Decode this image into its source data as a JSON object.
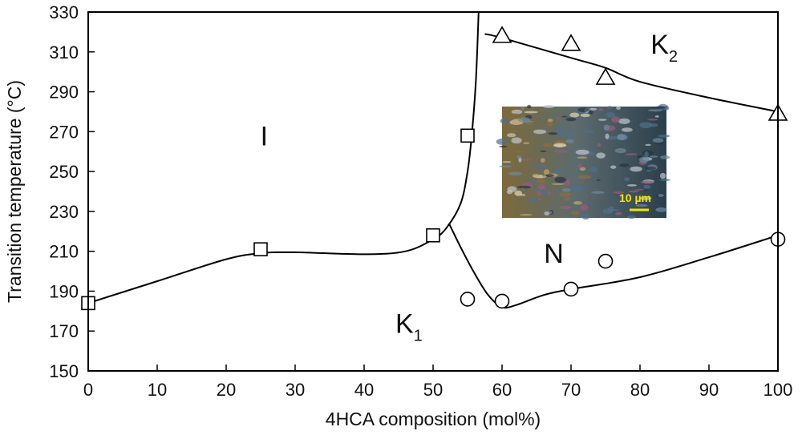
{
  "chart_data": {
    "type": "scatter",
    "title": "",
    "xlabel": "4HCA composition (mol%)",
    "ylabel": "Transition temperature (°C)",
    "xlim": [
      0,
      100
    ],
    "ylim": [
      150,
      330
    ],
    "x_ticks": [
      0,
      10,
      20,
      30,
      40,
      50,
      60,
      70,
      80,
      90,
      100
    ],
    "y_ticks": [
      150,
      170,
      190,
      210,
      230,
      250,
      270,
      290,
      310,
      330
    ],
    "grid": false,
    "legend": "none",
    "series": [
      {
        "marker": "square",
        "points": [
          [
            0,
            184
          ],
          [
            25,
            211
          ],
          [
            50,
            218
          ],
          [
            55,
            268
          ]
        ]
      },
      {
        "marker": "circle",
        "points": [
          [
            55,
            186
          ],
          [
            60,
            185
          ],
          [
            70,
            191
          ],
          [
            75,
            205
          ],
          [
            100,
            216
          ]
        ]
      },
      {
        "marker": "triangle",
        "points": [
          [
            60,
            318
          ],
          [
            70,
            314
          ],
          [
            75,
            297
          ],
          [
            100,
            279
          ]
        ]
      }
    ],
    "curves": [
      {
        "points": [
          [
            0,
            184
          ],
          [
            10,
            195
          ],
          [
            20,
            206
          ],
          [
            25,
            209
          ],
          [
            30,
            209.5
          ],
          [
            40,
            208.5
          ],
          [
            46,
            210
          ],
          [
            50,
            216
          ],
          [
            52,
            222
          ],
          [
            54,
            234
          ],
          [
            55,
            250
          ],
          [
            55.6,
            268
          ],
          [
            56.2,
            295
          ],
          [
            56.6,
            330
          ]
        ]
      },
      {
        "points": [
          [
            52.3,
            224
          ],
          [
            54,
            212
          ],
          [
            56,
            199
          ],
          [
            58,
            188
          ],
          [
            60,
            182
          ],
          [
            62,
            183
          ],
          [
            66,
            188
          ],
          [
            70,
            191
          ],
          [
            80,
            197
          ],
          [
            90,
            207
          ],
          [
            100,
            218
          ]
        ]
      },
      {
        "points": [
          [
            57.5,
            319
          ],
          [
            60,
            317
          ],
          [
            70,
            307
          ],
          [
            75,
            302
          ],
          [
            80,
            295
          ],
          [
            90,
            287
          ],
          [
            100,
            280
          ]
        ]
      }
    ],
    "region_labels": [
      {
        "text": "I",
        "sub": "",
        "x": 25.5,
        "y": 268
      },
      {
        "text": "K",
        "sub": "2",
        "x": 83.5,
        "y": 314
      },
      {
        "text": "N",
        "sub": "",
        "x": 67.5,
        "y": 209
      },
      {
        "text": "K",
        "sub": "1",
        "x": 46.5,
        "y": 174
      }
    ],
    "inset": {
      "type": "micrograph",
      "scale_bar": "10 µm"
    }
  },
  "labels": {
    "xlabel": "4HCA composition (mol%)",
    "ylabel": "Transition temperature (°C)",
    "scale_bar": "10 µm"
  }
}
